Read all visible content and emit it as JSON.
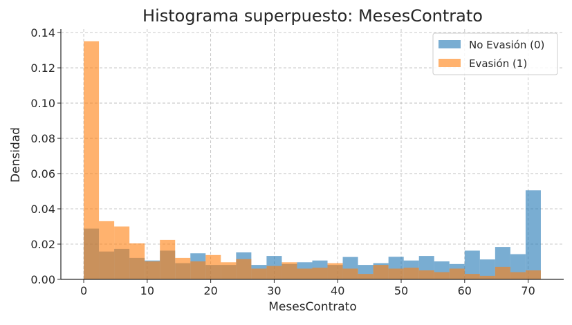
{
  "chart_data": {
    "type": "histogram",
    "title": "Histograma superpuesto: MesesContrato",
    "xlabel": "MesesContrato",
    "ylabel": "Densidad",
    "xlim": [
      -3.6,
      75.6
    ],
    "ylim": [
      0,
      0.142
    ],
    "x_ticks": [
      0,
      10,
      20,
      30,
      40,
      50,
      60,
      70
    ],
    "x_tick_labels": [
      "0",
      "10",
      "20",
      "30",
      "40",
      "50",
      "60",
      "70"
    ],
    "y_ticks": [
      0,
      0.02,
      0.04,
      0.06,
      0.08,
      0.1,
      0.12,
      0.14
    ],
    "y_tick_labels": [
      "0.00",
      "0.02",
      "0.04",
      "0.06",
      "0.08",
      "0.10",
      "0.12",
      "0.14"
    ],
    "grid": true,
    "legend_position": "top-right",
    "bin_edges": [
      0,
      2.4,
      4.8,
      7.2,
      9.6,
      12,
      14.4,
      16.8,
      19.2,
      21.6,
      24,
      26.4,
      28.8,
      31.2,
      33.6,
      36,
      38.4,
      40.8,
      43.2,
      45.6,
      48,
      50.4,
      52.8,
      55.2,
      57.6,
      60,
      62.4,
      64.8,
      67.2,
      69.6,
      72
    ],
    "series": [
      {
        "name": "No Evasión (0)",
        "color": "#1f77b4",
        "opacity": 0.6,
        "values": [
          0.0288,
          0.0158,
          0.0173,
          0.0122,
          0.0107,
          0.0163,
          0.0092,
          0.0148,
          0.0082,
          0.0082,
          0.0153,
          0.0082,
          0.0133,
          0.0087,
          0.0097,
          0.0107,
          0.0082,
          0.0127,
          0.0082,
          0.0092,
          0.0128,
          0.0107,
          0.0133,
          0.0102,
          0.0087,
          0.0163,
          0.0113,
          0.0184,
          0.0143,
          0.0505
        ]
      },
      {
        "name": "Evasión (1)",
        "color": "#ff7f0e",
        "opacity": 0.6,
        "values": [
          0.1351,
          0.033,
          0.03,
          0.0204,
          0.0102,
          0.0224,
          0.0122,
          0.0102,
          0.0138,
          0.0097,
          0.0115,
          0.0061,
          0.0076,
          0.0097,
          0.0061,
          0.0066,
          0.0092,
          0.0061,
          0.0031,
          0.0082,
          0.0061,
          0.0066,
          0.0051,
          0.0041,
          0.0061,
          0.0031,
          0.002,
          0.0071,
          0.0041,
          0.0051
        ]
      }
    ]
  }
}
